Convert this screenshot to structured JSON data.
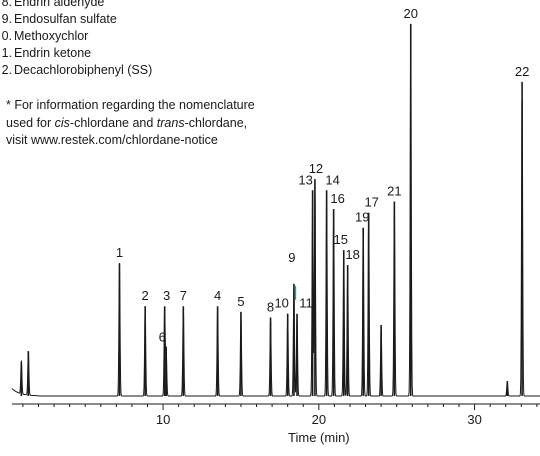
{
  "legend": [
    {
      "num": "8.",
      "label": "Endrin aldehyde"
    },
    {
      "num": "9.",
      "label": "Endosulfan sulfate"
    },
    {
      "num": "0.",
      "label": "Methoxychlor"
    },
    {
      "num": "1.",
      "label": "Endrin ketone"
    },
    {
      "num": "2.",
      "label": "Decachlorobiphenyl (SS)"
    }
  ],
  "note": {
    "line1": "* For information regarding the nomenclature",
    "line2_pre": "used for ",
    "line2_cis": "cis",
    "line2_mid": "-chlordane and ",
    "line2_trans": "trans",
    "line2_post": "-chlordane,",
    "line3": "visit www.restek.com/chlordane-notice"
  },
  "chart_data": {
    "type": "line",
    "xlabel": "Time (min)",
    "ylabel": "",
    "xlim": [
      0.3,
      34.2
    ],
    "ylim": [
      0,
      1
    ],
    "xticks": [
      10,
      20,
      30
    ],
    "trace_color": "#1a1a1a",
    "peak_marker_color": "#2a9d8f",
    "peaks": [
      {
        "label": "1",
        "t": 7.2,
        "h": 0.355
      },
      {
        "label": "2",
        "t": 8.85,
        "h": 0.24
      },
      {
        "label": "3",
        "t": 10.1,
        "h": 0.24
      },
      {
        "label": "6",
        "t": 10.2,
        "h": 0.13
      },
      {
        "label": "7",
        "t": 11.3,
        "h": 0.24
      },
      {
        "label": "4",
        "t": 13.5,
        "h": 0.24
      },
      {
        "label": "5",
        "t": 15.0,
        "h": 0.225
      },
      {
        "label": "8",
        "t": 16.9,
        "h": 0.21
      },
      {
        "label": "10",
        "t": 18.0,
        "h": 0.22
      },
      {
        "label": "9",
        "t": 18.4,
        "h": 0.3
      },
      {
        "label": "11",
        "t": 18.6,
        "h": 0.22
      },
      {
        "label": "13",
        "t": 19.6,
        "h": 0.55
      },
      {
        "label": "12",
        "t": 19.75,
        "h": 0.58
      },
      {
        "label": "14",
        "t": 20.5,
        "h": 0.55
      },
      {
        "label": "16",
        "t": 20.95,
        "h": 0.5
      },
      {
        "label": "15",
        "t": 21.6,
        "h": 0.39
      },
      {
        "label": "18",
        "t": 21.85,
        "h": 0.35
      },
      {
        "label": "19",
        "t": 22.85,
        "h": 0.45
      },
      {
        "label": "17",
        "t": 23.2,
        "h": 0.49
      },
      {
        "label": "21",
        "t": 24.85,
        "h": 0.52
      },
      {
        "label": "20",
        "t": 25.9,
        "h": 0.995
      },
      {
        "label": "22",
        "t": 33.05,
        "h": 0.84
      }
    ],
    "unlabeled_peaks": [
      {
        "t": 0.9,
        "h": 0.09
      },
      {
        "t": 1.35,
        "h": 0.12
      },
      {
        "t": 24.0,
        "h": 0.19
      },
      {
        "t": 32.1,
        "h": 0.04
      }
    ]
  }
}
